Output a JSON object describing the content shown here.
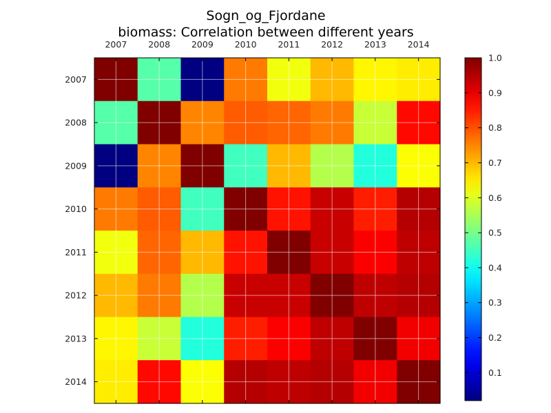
{
  "chart_data": {
    "type": "heatmap",
    "title": "Sogn_og_Fjordane",
    "subtitle": "biomass: Correlation between different years",
    "x_labels": [
      "2007",
      "2008",
      "2009",
      "2010",
      "2011",
      "2012",
      "2013",
      "2014"
    ],
    "y_labels": [
      "2007",
      "2008",
      "2009",
      "2010",
      "2011",
      "2012",
      "2013",
      "2014"
    ],
    "matrix": [
      [
        1.0,
        0.47,
        0.02,
        0.76,
        0.62,
        0.7,
        0.64,
        0.65
      ],
      [
        0.47,
        1.0,
        0.75,
        0.79,
        0.78,
        0.76,
        0.58,
        0.87
      ],
      [
        0.02,
        0.75,
        1.0,
        0.45,
        0.7,
        0.56,
        0.42,
        0.63
      ],
      [
        0.76,
        0.79,
        0.45,
        1.0,
        0.86,
        0.93,
        0.85,
        0.95
      ],
      [
        0.62,
        0.78,
        0.7,
        0.86,
        1.0,
        0.93,
        0.88,
        0.94
      ],
      [
        0.7,
        0.76,
        0.56,
        0.93,
        0.93,
        1.0,
        0.94,
        0.95
      ],
      [
        0.64,
        0.58,
        0.42,
        0.85,
        0.88,
        0.94,
        1.0,
        0.89
      ],
      [
        0.65,
        0.87,
        0.63,
        0.95,
        0.94,
        0.95,
        0.89,
        1.0
      ]
    ],
    "colormap": "jet",
    "colorbar": {
      "range": [
        0.02,
        1.0
      ],
      "ticks": [
        0.1,
        0.2,
        0.3,
        0.4,
        0.5,
        0.6,
        0.7,
        0.8,
        0.9,
        1.0
      ],
      "tick_labels": [
        "0.1",
        "0.2",
        "0.3",
        "0.4",
        "0.5",
        "0.6",
        "0.7",
        "0.8",
        "0.9",
        "1.0"
      ]
    },
    "grid": true,
    "x_ticks_position": "top"
  }
}
